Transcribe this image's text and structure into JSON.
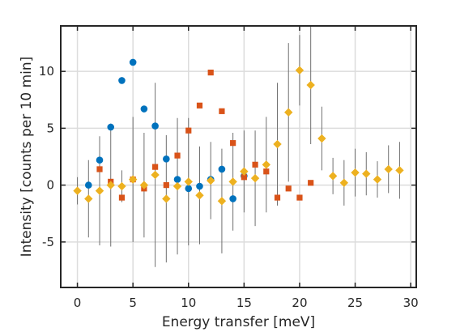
{
  "chart_data": {
    "type": "scatter",
    "xlabel": "Energy transfer [meV]",
    "ylabel": "Intensity [counts per 10 min]",
    "xlim": [
      -1.5,
      30.5
    ],
    "ylim": [
      -9,
      14
    ],
    "xticks": [
      0,
      5,
      10,
      15,
      20,
      25,
      30
    ],
    "yticks": [
      -5,
      0,
      5,
      10
    ],
    "xtick_labels": [
      "0",
      "5",
      "10",
      "15",
      "20",
      "25",
      "30"
    ],
    "ytick_labels": [
      "-5",
      "0",
      "5",
      "10"
    ],
    "grid": true,
    "series": [
      {
        "marker": "circle",
        "color": "#0072bd",
        "points": [
          {
            "x": 1,
            "y": 0.0,
            "err": 0
          },
          {
            "x": 2,
            "y": 2.2,
            "err": 0
          },
          {
            "x": 3,
            "y": 5.1,
            "err": 0
          },
          {
            "x": 4,
            "y": 9.2,
            "err": 0
          },
          {
            "x": 5,
            "y": 10.8,
            "err": 0
          },
          {
            "x": 6,
            "y": 6.7,
            "err": 0
          },
          {
            "x": 7,
            "y": 5.2,
            "err": 0
          },
          {
            "x": 8,
            "y": 2.3,
            "err": 0
          },
          {
            "x": 9,
            "y": 0.5,
            "err": 0
          },
          {
            "x": 10,
            "y": -0.3,
            "err": 0
          },
          {
            "x": 11,
            "y": -0.1,
            "err": 0
          },
          {
            "x": 12,
            "y": 0.5,
            "err": 0
          },
          {
            "x": 13,
            "y": 1.4,
            "err": 0
          },
          {
            "x": 14,
            "y": -1.2,
            "err": 0
          },
          {
            "x": 15,
            "y": 0.8,
            "err": 0
          }
        ]
      },
      {
        "marker": "square",
        "color": "#d95319",
        "points": [
          {
            "x": 2,
            "y": 1.4,
            "err": 0
          },
          {
            "x": 3,
            "y": 0.3,
            "err": 0
          },
          {
            "x": 4,
            "y": -1.1,
            "err": 0
          },
          {
            "x": 5,
            "y": 0.5,
            "err": 0
          },
          {
            "x": 6,
            "y": -0.3,
            "err": 0
          },
          {
            "x": 7,
            "y": 1.6,
            "err": 0
          },
          {
            "x": 8,
            "y": 0.0,
            "err": 0
          },
          {
            "x": 9,
            "y": 2.6,
            "err": 0
          },
          {
            "x": 10,
            "y": 4.8,
            "err": 0
          },
          {
            "x": 11,
            "y": 7.0,
            "err": 0
          },
          {
            "x": 12,
            "y": 9.9,
            "err": 0
          },
          {
            "x": 13,
            "y": 6.5,
            "err": 0
          },
          {
            "x": 14,
            "y": 3.7,
            "err": 0
          },
          {
            "x": 15,
            "y": 0.7,
            "err": 0
          },
          {
            "x": 16,
            "y": 1.8,
            "err": 0
          },
          {
            "x": 17,
            "y": 1.2,
            "err": 0
          },
          {
            "x": 18,
            "y": -1.1,
            "err": 0
          },
          {
            "x": 19,
            "y": -0.3,
            "err": 0
          },
          {
            "x": 20,
            "y": -1.1,
            "err": 0
          },
          {
            "x": 21,
            "y": 0.2,
            "err": 0
          }
        ]
      },
      {
        "marker": "diamond",
        "color": "#edb120",
        "points": [
          {
            "x": 0,
            "y": -0.5,
            "err": 1.2
          },
          {
            "x": 1,
            "y": -1.2,
            "err": 3.4
          },
          {
            "x": 2,
            "y": -0.5,
            "err": 4.8
          },
          {
            "x": 3,
            "y": 0.0,
            "err": 5.4
          },
          {
            "x": 4,
            "y": -0.1,
            "err": 1.4
          },
          {
            "x": 5,
            "y": 0.5,
            "err": 5.5
          },
          {
            "x": 6,
            "y": 0.0,
            "err": 4.6
          },
          {
            "x": 7,
            "y": 0.9,
            "err": 8.1
          },
          {
            "x": 8,
            "y": -1.2,
            "err": 5.6
          },
          {
            "x": 9,
            "y": -0.1,
            "err": 6.0
          },
          {
            "x": 10,
            "y": 0.3,
            "err": 5.6
          },
          {
            "x": 11,
            "y": -0.9,
            "err": 4.3
          },
          {
            "x": 12,
            "y": 0.4,
            "err": 3.4
          },
          {
            "x": 13,
            "y": -1.4,
            "err": 4.6
          },
          {
            "x": 14,
            "y": 0.3,
            "err": 4.3
          },
          {
            "x": 15,
            "y": 1.2,
            "err": 3.6
          },
          {
            "x": 16,
            "y": 0.6,
            "err": 4.2
          },
          {
            "x": 17,
            "y": 1.8,
            "err": 4.2
          },
          {
            "x": 18,
            "y": 3.6,
            "err": 5.4
          },
          {
            "x": 19,
            "y": 6.4,
            "err": 6.1
          },
          {
            "x": 20,
            "y": 10.1,
            "err": 3.1
          },
          {
            "x": 21,
            "y": 8.8,
            "err": 5.2
          },
          {
            "x": 22,
            "y": 4.1,
            "err": 2.8
          },
          {
            "x": 23,
            "y": 0.8,
            "err": 1.6
          },
          {
            "x": 24,
            "y": 0.2,
            "err": 2.0
          },
          {
            "x": 25,
            "y": 1.1,
            "err": 2.1
          },
          {
            "x": 26,
            "y": 1.0,
            "err": 1.9
          },
          {
            "x": 27,
            "y": 0.5,
            "err": 1.6
          },
          {
            "x": 28,
            "y": 1.4,
            "err": 2.1
          },
          {
            "x": 29,
            "y": 1.3,
            "err": 2.5
          }
        ]
      }
    ]
  }
}
